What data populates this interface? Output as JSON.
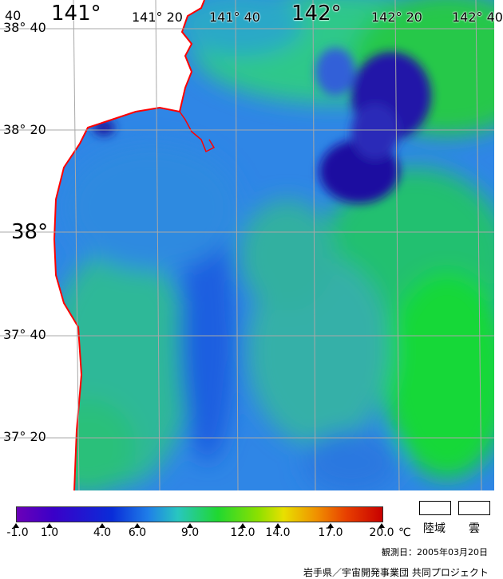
{
  "map": {
    "lon_labels_top": [
      "141°",
      "141° 20",
      "141° 40",
      "142°",
      "142° 20",
      "142° 40"
    ],
    "partial_top_left": "40",
    "lat_labels_left": [
      "38° 40",
      "38° 20",
      "38°",
      "37° 40",
      "37° 20"
    ],
    "colors": {
      "land": "#ffffff",
      "coastline": "#ff0000",
      "grid": "#a0a0a0",
      "sea_base": "#29a0e0",
      "cold_patch": "#2a1a9a",
      "warm_patch": "#20d020"
    }
  },
  "colorbar": {
    "ticks": [
      "-1.0",
      "1.0",
      "4.0",
      "6.0",
      "9.0",
      "12.0",
      "14.0",
      "17.0",
      "20.0"
    ],
    "unit": "℃",
    "legend": {
      "land": "陸域",
      "cloud": "雲"
    }
  },
  "observation_date": "観測日：2005年03月20日",
  "credit": "岩手県／宇宙開発事業団 共同プロジェクト"
}
